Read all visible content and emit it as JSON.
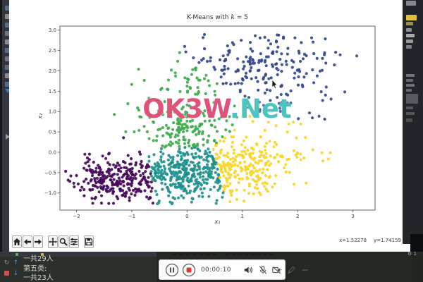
{
  "figure": {
    "title_prefix": "K-Means with ",
    "title_k": "k",
    "title_suffix": " = 5",
    "xlabel": "x₁",
    "ylabel": "x₂",
    "toolbar_buttons": [
      {
        "name": "home"
      },
      {
        "name": "back"
      },
      {
        "name": "forward"
      },
      {
        "name": "pan"
      },
      {
        "name": "zoom"
      },
      {
        "name": "configure-subplots"
      },
      {
        "name": "save"
      }
    ],
    "status_x": "x=1.52278",
    "status_y": "y=1.74159"
  },
  "chart_data": {
    "type": "scatter",
    "title": "K-Means with k = 5",
    "xlabel": "x1",
    "ylabel": "x2",
    "xlim": [
      -2.3,
      3.4
    ],
    "ylim": [
      -1.42,
      3.1
    ],
    "xticks": [
      -2,
      -1,
      0,
      1,
      2,
      3
    ],
    "yticks": [
      -1.0,
      -0.5,
      0.0,
      0.5,
      1.0,
      1.5,
      2.0,
      2.5,
      3.0
    ],
    "grid": false,
    "legend": "none",
    "k": 5,
    "point_radius": 2.1,
    "seed": 11,
    "clusters": [
      {
        "name": "purple",
        "color": "#46085c",
        "center": [
          -1.3,
          -0.65
        ],
        "approx_count": 270,
        "x_range": [
          -2.1,
          -0.55
        ],
        "y_range": [
          -1.25,
          0.0
        ]
      },
      {
        "name": "blue",
        "color": "#33488d",
        "center": [
          1.6,
          2.1
        ],
        "approx_count": 225,
        "x_range": [
          0.0,
          3.05
        ],
        "y_range": [
          0.6,
          2.95
        ]
      },
      {
        "name": "teal",
        "color": "#1f918d",
        "center": [
          0.0,
          -0.5
        ],
        "approx_count": 340,
        "x_range": [
          -0.75,
          0.6
        ],
        "y_range": [
          -1.05,
          0.12
        ]
      },
      {
        "name": "green",
        "color": "#3faa4e",
        "center": [
          -0.05,
          0.75
        ],
        "approx_count": 225,
        "x_range": [
          -1.1,
          1.0
        ],
        "y_range": [
          0.12,
          2.45
        ]
      },
      {
        "name": "yellow",
        "color": "#f8d629",
        "center": [
          1.1,
          -0.3
        ],
        "approx_count": 250,
        "x_range": [
          0.5,
          2.85
        ],
        "y_range": [
          -1.0,
          0.55
        ]
      }
    ],
    "generator_blobs": [
      {
        "n": 270,
        "cx": -1.3,
        "cy": -0.68,
        "sx": 0.36,
        "sy": 0.28
      },
      {
        "n": 340,
        "cx": -0.02,
        "cy": -0.5,
        "sx": 0.4,
        "sy": 0.33
      },
      {
        "n": 235,
        "cx": 1.05,
        "cy": -0.33,
        "sx": 0.42,
        "sy": 0.36
      },
      {
        "n": 195,
        "cx": -0.08,
        "cy": 0.62,
        "sx": 0.46,
        "sy": 0.4
      },
      {
        "n": 28,
        "cx": 0.05,
        "cy": 1.6,
        "sx": 0.5,
        "sy": 0.4
      },
      {
        "n": 190,
        "cx": 1.25,
        "cy": 2.15,
        "sx": 0.72,
        "sy": 0.42
      },
      {
        "n": 38,
        "cx": 1.7,
        "cy": 1.15,
        "sx": 0.6,
        "sy": 0.38
      },
      {
        "n": 14,
        "cx": 2.3,
        "cy": 0.1,
        "sx": 0.35,
        "sy": 0.3
      }
    ]
  },
  "watermark": {
    "left": "OK3W",
    "right": ".Net",
    "left_color": "#e1527b",
    "right_color": "#4cc4c0"
  },
  "console": {
    "lines": [
      "一共29人",
      "第五类:",
      "一共23人"
    ]
  },
  "recorder": {
    "time": "00:00:10",
    "buttons": [
      {
        "name": "pause"
      },
      {
        "name": "stop"
      }
    ],
    "tools": [
      {
        "name": "speaker"
      },
      {
        "name": "mic-muted"
      },
      {
        "name": "camera-muted"
      },
      {
        "name": "draw"
      },
      {
        "name": "minimize"
      }
    ]
  },
  "ide": {
    "status_badge": "1"
  }
}
